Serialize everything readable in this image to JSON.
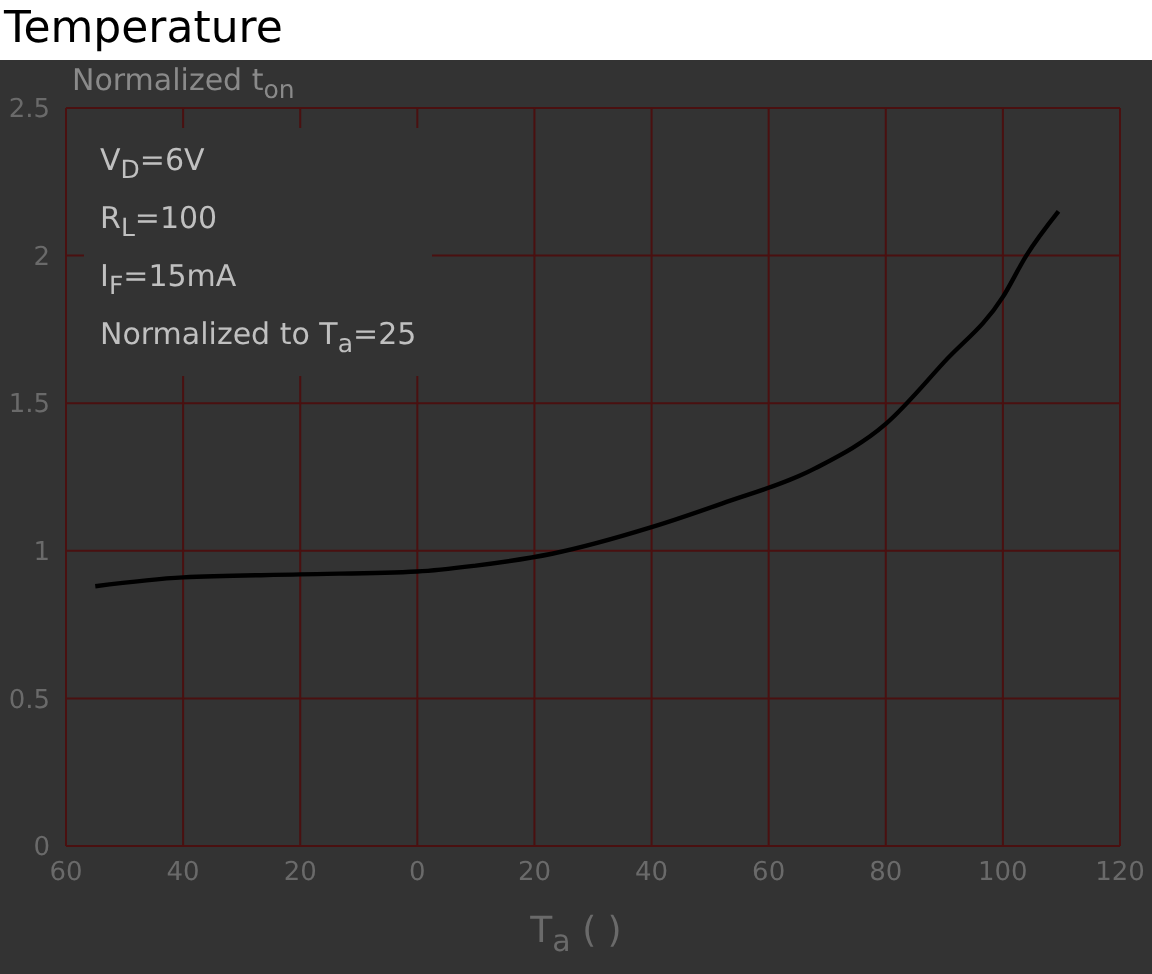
{
  "chart_data": {
    "type": "line",
    "title": "Temperature",
    "ylabel": "Normalized t$_{on}$",
    "xlabel": "T$_{a}$ (   )",
    "annotations": [
      "V$_{D}$=6V",
      "R$_{L}$=100",
      "I$_{F}$=15mA",
      "Normalized to T$_{a}$=25"
    ],
    "x": [
      -55,
      -40,
      -20,
      0,
      10,
      23,
      40,
      52,
      68,
      80,
      90,
      100,
      104,
      109.5
    ],
    "series": [
      {
        "color": "#000000",
        "values": [
          0.88,
          0.91,
          0.92,
          0.93,
          0.95,
          0.99,
          1.08,
          1.16,
          1.28,
          1.43,
          1.64,
          1.86,
          2.0,
          2.15
        ]
      }
    ],
    "xlim": [
      -60,
      120
    ],
    "ylim": [
      0,
      2.5
    ],
    "xticks": [
      {
        "value": -60,
        "label": "60"
      },
      {
        "value": -40,
        "label": "40"
      },
      {
        "value": -20,
        "label": "20"
      },
      0,
      20,
      40,
      60,
      80,
      100,
      120
    ],
    "yticks": [
      0,
      0.5,
      1,
      1.5,
      2,
      2.5
    ],
    "grid": true,
    "marker": "none"
  }
}
